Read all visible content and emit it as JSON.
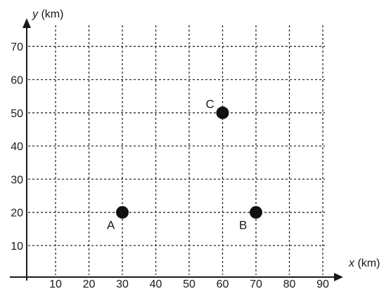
{
  "chart_data": {
    "type": "scatter",
    "x_axis": {
      "variable": "x",
      "unit": "(km)",
      "ticks": [
        10,
        20,
        30,
        40,
        50,
        60,
        70,
        80,
        90
      ],
      "range": [
        0,
        90
      ]
    },
    "y_axis": {
      "variable": "y",
      "unit": "(km)",
      "ticks": [
        10,
        20,
        30,
        40,
        50,
        60,
        70
      ],
      "range": [
        0,
        70
      ]
    },
    "grid": true,
    "points": [
      {
        "label": "A",
        "x": 30,
        "y": 20
      },
      {
        "label": "B",
        "x": 70,
        "y": 20
      },
      {
        "label": "C",
        "x": 60,
        "y": 50
      }
    ]
  }
}
